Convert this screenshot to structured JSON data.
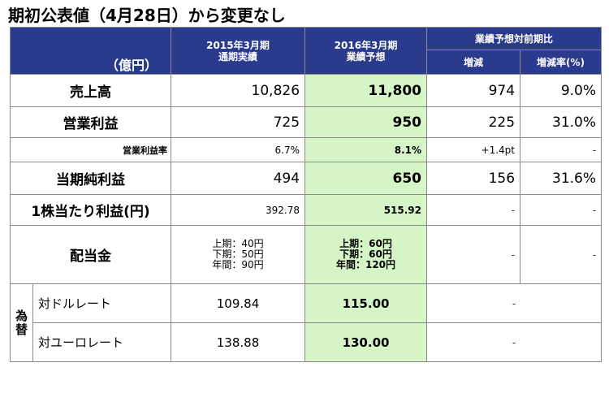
{
  "title": "期初公表値（4月28日）から変更なし",
  "header": {
    "unit": "（億円）",
    "col_actual_line1": "2015年3月期",
    "col_actual_line2": "通期実績",
    "col_forecast_line1": "2016年3月期",
    "col_forecast_line2": "業績予想",
    "col_compare": "業績予想対前期比",
    "col_change": "増減",
    "col_change_rate": "増減率(%)"
  },
  "rows": {
    "sales": {
      "label": "売上高",
      "actual": "10,826",
      "forecast": "11,800",
      "change": "974",
      "rate": "9.0%"
    },
    "op_income": {
      "label": "営業利益",
      "actual": "725",
      "forecast": "950",
      "change": "225",
      "rate": "31.0%"
    },
    "op_margin": {
      "label": "営業利益率",
      "actual": "6.7%",
      "forecast": "8.1%",
      "change": "+1.4pt",
      "rate": "-"
    },
    "net_income": {
      "label": "当期純利益",
      "actual": "494",
      "forecast": "650",
      "change": "156",
      "rate": "31.6%"
    },
    "eps": {
      "label": "1株当たり利益(円)",
      "actual": "392.78",
      "forecast": "515.92",
      "change": "-",
      "rate": "-"
    },
    "dividend": {
      "label": "配当金",
      "actual": [
        "上期：40円",
        "下期：50円",
        "年間：90円"
      ],
      "forecast": [
        "上期：60円",
        "下期：60円",
        "年間：120円"
      ],
      "change": "-",
      "rate": "-"
    }
  },
  "fx": {
    "side_label_1": "為",
    "side_label_2": "替",
    "usd": {
      "label": "対ドルレート",
      "actual": "109.84",
      "forecast": "115.00",
      "compare": "-"
    },
    "eur": {
      "label": "対ユーロレート",
      "actual": "138.88",
      "forecast": "130.00",
      "compare": "-"
    }
  },
  "colors": {
    "header_bg": "#2a3a8c",
    "forecast_bg": "#d6f5c6"
  }
}
